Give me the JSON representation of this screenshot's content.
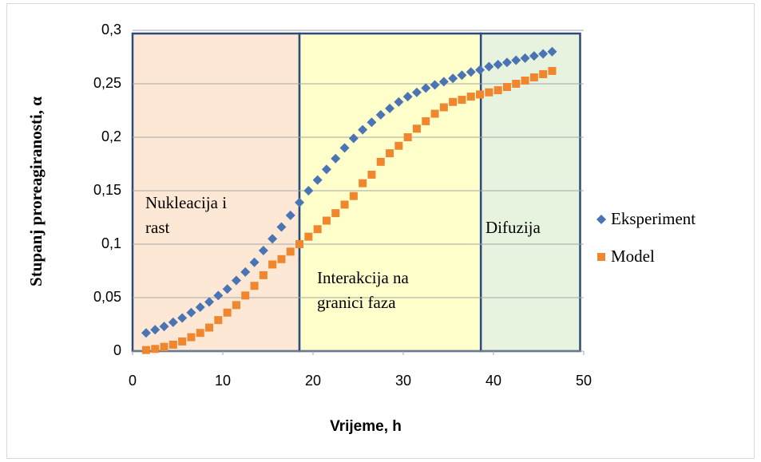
{
  "chart_data": {
    "type": "scatter",
    "xlabel": "Vrijeme, h",
    "ylabel": "Stupanj proreagiranosti, α",
    "xlim": [
      0,
      50
    ],
    "xticks": [
      0,
      10,
      20,
      30,
      40,
      50
    ],
    "ylim": [
      0,
      0.3
    ],
    "yticks": [
      {
        "value": 0,
        "label": "0"
      },
      {
        "value": 0.05,
        "label": "0,05"
      },
      {
        "value": 0.1,
        "label": "0,1"
      },
      {
        "value": 0.15,
        "label": "0,15"
      },
      {
        "value": 0.2,
        "label": "0,2"
      },
      {
        "value": 0.25,
        "label": "0,25"
      },
      {
        "value": 0.3,
        "label": "0,3"
      }
    ],
    "grid": true,
    "legend": "right",
    "regions": [
      {
        "lines": [
          "Nukleacija i",
          "rast"
        ],
        "x": [
          0,
          18.5
        ],
        "color": "#fce8d4"
      },
      {
        "lines": [
          "Interakcija na",
          "granici faza"
        ],
        "x": [
          18.5,
          38.6
        ],
        "color": "#ffffcc"
      },
      {
        "lines": [
          "Difuzija"
        ],
        "x": [
          38.6,
          49.6
        ],
        "color": "#e8f3df"
      }
    ],
    "x": [
      1.5,
      2.5,
      3.5,
      4.5,
      5.5,
      6.5,
      7.5,
      8.5,
      9.5,
      10.5,
      11.5,
      12.5,
      13.5,
      14.5,
      15.5,
      16.5,
      17.5,
      18.5,
      19.5,
      20.5,
      21.5,
      22.5,
      23.5,
      24.5,
      25.5,
      26.5,
      27.5,
      28.5,
      29.5,
      30.5,
      31.5,
      32.5,
      33.5,
      34.5,
      35.5,
      36.5,
      37.5,
      38.5,
      39.5,
      40.5,
      41.5,
      42.5,
      43.5,
      44.5,
      45.5,
      46.5
    ],
    "series": [
      {
        "name": "Eksperiment",
        "color": "#4a74b4",
        "marker": "diamond",
        "values": [
          0.017,
          0.02,
          0.023,
          0.027,
          0.031,
          0.036,
          0.041,
          0.046,
          0.052,
          0.058,
          0.066,
          0.074,
          0.083,
          0.094,
          0.105,
          0.116,
          0.127,
          0.139,
          0.15,
          0.16,
          0.17,
          0.18,
          0.19,
          0.199,
          0.207,
          0.214,
          0.221,
          0.227,
          0.233,
          0.238,
          0.242,
          0.246,
          0.249,
          0.252,
          0.255,
          0.258,
          0.261,
          0.263,
          0.266,
          0.268,
          0.27,
          0.272,
          0.274,
          0.276,
          0.278,
          0.28
        ]
      },
      {
        "name": "Model",
        "color": "#f0862e",
        "marker": "square",
        "values": [
          0.001,
          0.002,
          0.004,
          0.006,
          0.009,
          0.013,
          0.017,
          0.022,
          0.029,
          0.036,
          0.043,
          0.052,
          0.061,
          0.071,
          0.081,
          0.086,
          0.093,
          0.1,
          0.107,
          0.114,
          0.122,
          0.129,
          0.137,
          0.145,
          0.157,
          0.165,
          0.177,
          0.185,
          0.192,
          0.2,
          0.208,
          0.215,
          0.222,
          0.228,
          0.233,
          0.235,
          0.238,
          0.24,
          0.242,
          0.244,
          0.247,
          0.25,
          0.253,
          0.256,
          0.259,
          0.262
        ]
      }
    ]
  }
}
